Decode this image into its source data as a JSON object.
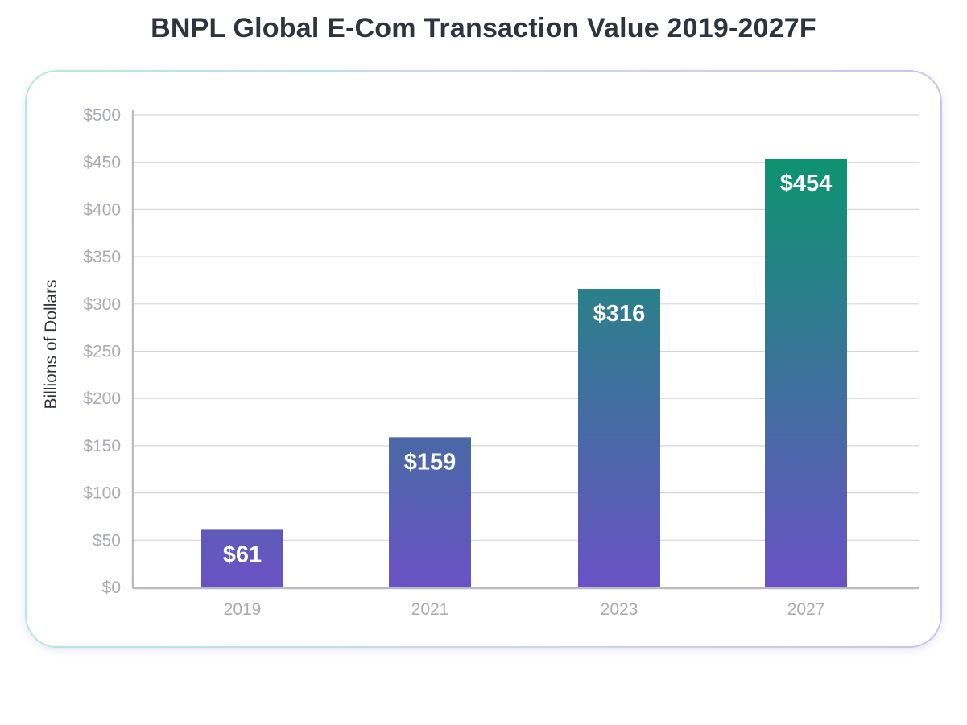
{
  "chart_data": {
    "type": "bar",
    "title": "BNPL Global E-Com Transaction Value 2019-2027F",
    "xlabel": "",
    "ylabel": "Billions of Dollars",
    "categories": [
      "2019",
      "2021",
      "2023",
      "2027"
    ],
    "values": [
      61,
      159,
      316,
      454
    ],
    "value_labels": [
      "$61",
      "$159",
      "$316",
      "$454"
    ],
    "ylim": [
      0,
      500
    ],
    "yticks": [
      0,
      50,
      100,
      150,
      200,
      250,
      300,
      350,
      400,
      450,
      500
    ],
    "ytick_labels": [
      "$0",
      "$50",
      "$100",
      "$150",
      "$200",
      "$250",
      "$300",
      "$350",
      "$400",
      "$450",
      "$500"
    ],
    "grid": true,
    "legend": "none",
    "colors": {
      "bar_bottom": "#6a52c4",
      "bar_top": "#049a68",
      "gridline": "#d3d6da",
      "axis": "#b8bcc2"
    }
  }
}
